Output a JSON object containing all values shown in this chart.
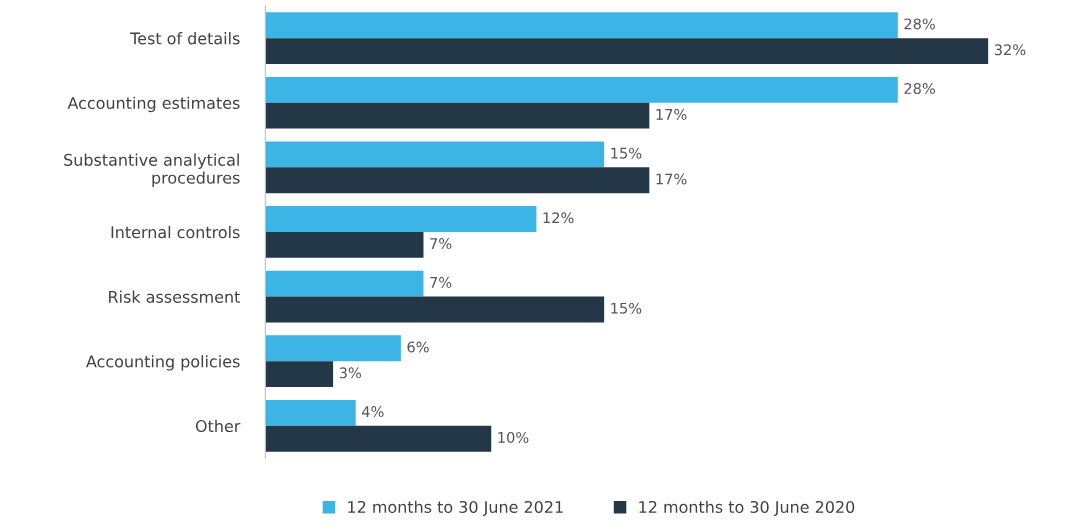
{
  "chart_data": {
    "type": "bar",
    "orientation": "horizontal",
    "categories": [
      "Test of details",
      "Accounting estimates",
      "Substantive analytical\nprocedures",
      "Internal controls",
      "Risk assessment",
      "Accounting policies",
      "Other"
    ],
    "series": [
      {
        "name": "12 months to 30 June 2021",
        "color": "#3cb4e5",
        "values": [
          28,
          28,
          15,
          12,
          7,
          6,
          4
        ],
        "value_labels": [
          "28%",
          "28%",
          "15%",
          "12%",
          "7%",
          "6%",
          "4%"
        ]
      },
      {
        "name": "12 months to 30 June 2020",
        "color": "#243746",
        "values": [
          32,
          17,
          17,
          7,
          15,
          3,
          10
        ],
        "value_labels": [
          "32%",
          "17%",
          "17%",
          "7%",
          "15%",
          "3%",
          "10%"
        ]
      }
    ],
    "legend": "bottom",
    "grid": false,
    "tick_labels": "y"
  }
}
